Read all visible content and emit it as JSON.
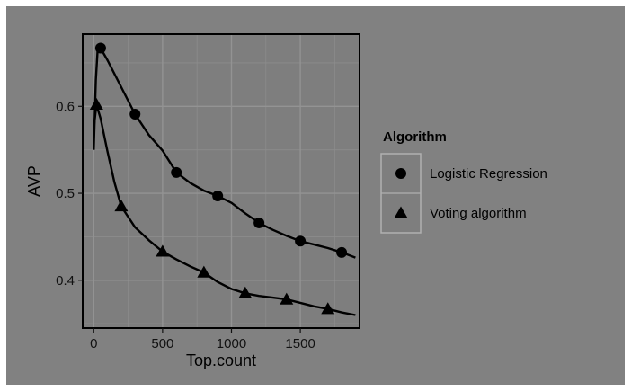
{
  "chart_data": {
    "type": "line",
    "xlabel": "Top.count",
    "ylabel": "AVP",
    "xlim": [
      -80,
      1930
    ],
    "ylim": [
      0.345,
      0.683
    ],
    "xticks": [
      0,
      500,
      1000,
      1500
    ],
    "yticks": [
      0.4,
      0.5,
      0.6
    ],
    "grid": true,
    "legend": {
      "title": "Algorithm",
      "placement": "right"
    },
    "series": [
      {
        "name": "Logistic Regression",
        "marker": "circle",
        "x": [
          50,
          300,
          600,
          900,
          1200,
          1500,
          1800
        ],
        "y": [
          0.667,
          0.591,
          0.524,
          0.497,
          0.466,
          0.445,
          0.432
        ],
        "curve_x": [
          0,
          15,
          30,
          50,
          100,
          200,
          300,
          400,
          500,
          600,
          700,
          800,
          900,
          1000,
          1100,
          1200,
          1300,
          1400,
          1500,
          1600,
          1700,
          1800,
          1900
        ],
        "curve_y": [
          0.55,
          0.63,
          0.67,
          0.667,
          0.653,
          0.622,
          0.591,
          0.567,
          0.549,
          0.524,
          0.512,
          0.503,
          0.497,
          0.489,
          0.477,
          0.466,
          0.458,
          0.451,
          0.445,
          0.441,
          0.437,
          0.432,
          0.426
        ]
      },
      {
        "name": "Voting algorithm",
        "marker": "triangle",
        "x": [
          20,
          200,
          500,
          800,
          1100,
          1400,
          1700
        ],
        "y": [
          0.602,
          0.485,
          0.433,
          0.409,
          0.385,
          0.378,
          0.367
        ],
        "curve_x": [
          0,
          20,
          50,
          100,
          150,
          200,
          300,
          400,
          500,
          600,
          700,
          800,
          900,
          1000,
          1100,
          1200,
          1300,
          1400,
          1500,
          1600,
          1700,
          1800,
          1900
        ],
        "curve_y": [
          0.575,
          0.602,
          0.586,
          0.548,
          0.513,
          0.485,
          0.461,
          0.446,
          0.433,
          0.424,
          0.416,
          0.409,
          0.398,
          0.39,
          0.385,
          0.382,
          0.38,
          0.378,
          0.374,
          0.37,
          0.367,
          0.363,
          0.36
        ]
      }
    ]
  }
}
